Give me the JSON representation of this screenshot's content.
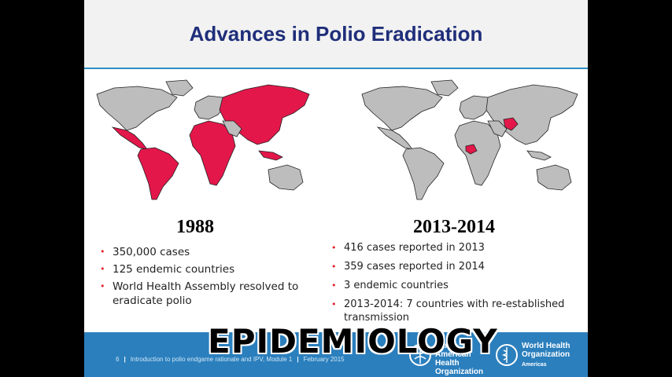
{
  "slide": {
    "title": "Advances in Polio Eradication",
    "left": {
      "year": "1988",
      "bullets": [
        "350,000 cases",
        "125 endemic countries",
        "World Health Assembly resolved to eradicate polio"
      ]
    },
    "right": {
      "year": "2013-2014",
      "bullets": [
        "416 cases reported in 2013",
        "359 cases reported in 2014",
        "3 endemic countries",
        "2013-2014: 7 countries with re-established transmission"
      ]
    },
    "footer": {
      "page": "6",
      "course": "Introduction to polio endgame rationale and IPV, Module 1",
      "date": "February 2015",
      "paho_lines": [
        "Pan American",
        "Health",
        "Organization"
      ],
      "who_lines": [
        "World Health",
        "Organization"
      ],
      "who_region": "Americas"
    }
  },
  "overlay_text": "EPIDEMIOLOGY",
  "colors": {
    "title": "#1f2e7a",
    "endemic": "#e3174a",
    "land": "#bdbdbd",
    "footer": "#2b7fbd",
    "bullet": "#e0202a"
  }
}
